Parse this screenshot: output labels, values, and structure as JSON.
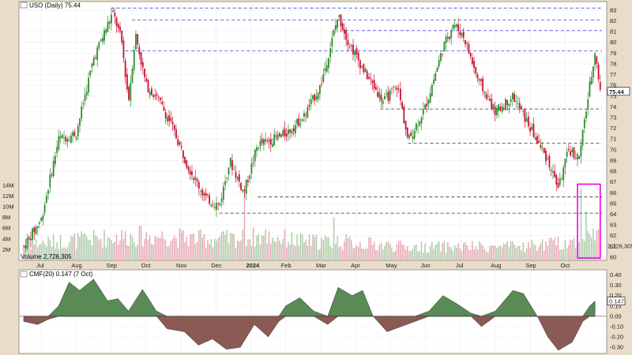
{
  "chart_data": [
    {
      "type": "candlestick",
      "symbol": "USO",
      "title": "USO (Daily) 75.44",
      "last_close": 75.44,
      "volume_label": "Volume 2,726,305",
      "volume_marker": "2,726,305",
      "price_ticks": [
        60,
        61,
        62,
        63,
        64,
        65,
        66,
        67,
        68,
        69,
        70,
        71,
        72,
        73,
        74,
        75,
        76,
        77,
        78,
        79,
        80,
        81,
        82,
        83
      ],
      "ylim": [
        59.7,
        83.8
      ],
      "volume_ticks": [
        "2M",
        "4M",
        "6M",
        "8M",
        "10M",
        "12M",
        "14M"
      ],
      "volume_tick_values": [
        2,
        4,
        6,
        8,
        10,
        12,
        14
      ],
      "volume_ylim": [
        0,
        15
      ],
      "x_labels": [
        "Jul",
        "Aug",
        "Sep",
        "Oct",
        "Nov",
        "Dec",
        "2024",
        "Feb",
        "Mar",
        "Apr",
        "May",
        "Jun",
        "Jul",
        "Aug",
        "Sep",
        "Oct"
      ],
      "x_label_month_index": [
        1,
        2,
        3,
        4,
        5,
        6,
        7,
        8,
        9,
        10,
        11,
        12,
        13,
        14,
        15,
        16
      ],
      "resistance_levels_blue": [
        83.2,
        82.1,
        81.1,
        79.2
      ],
      "support_levels_black": [
        73.8,
        70.6,
        65.6,
        64.1
      ],
      "price_path": [
        {
          "t": 0,
          "p": 61.0
        },
        {
          "t": 0.5,
          "p": 63.5
        },
        {
          "t": 1.0,
          "p": 71.0
        },
        {
          "t": 1.5,
          "p": 71.5
        },
        {
          "t": 2.0,
          "p": 78.5
        },
        {
          "t": 2.55,
          "p": 82.8
        },
        {
          "t": 2.8,
          "p": 80.2
        },
        {
          "t": 3.0,
          "p": 74.5
        },
        {
          "t": 3.2,
          "p": 80.8
        },
        {
          "t": 3.5,
          "p": 76.0
        },
        {
          "t": 3.8,
          "p": 75.0
        },
        {
          "t": 4.2,
          "p": 72.5
        },
        {
          "t": 4.7,
          "p": 68.5
        },
        {
          "t": 5.2,
          "p": 65.5
        },
        {
          "t": 5.6,
          "p": 64.8
        },
        {
          "t": 5.9,
          "p": 69.0
        },
        {
          "t": 6.3,
          "p": 66.0
        },
        {
          "t": 6.7,
          "p": 70.5
        },
        {
          "t": 7.0,
          "p": 70.8
        },
        {
          "t": 7.5,
          "p": 71.5
        },
        {
          "t": 8.0,
          "p": 73.0
        },
        {
          "t": 8.5,
          "p": 76.0
        },
        {
          "t": 9.0,
          "p": 82.5
        },
        {
          "t": 9.3,
          "p": 80.0
        },
        {
          "t": 9.8,
          "p": 77.0
        },
        {
          "t": 10.3,
          "p": 74.5
        },
        {
          "t": 10.7,
          "p": 76.0
        },
        {
          "t": 11.0,
          "p": 70.8
        },
        {
          "t": 11.5,
          "p": 74.0
        },
        {
          "t": 12.0,
          "p": 79.5
        },
        {
          "t": 12.3,
          "p": 81.8
        },
        {
          "t": 12.6,
          "p": 80.5
        },
        {
          "t": 13.0,
          "p": 76.5
        },
        {
          "t": 13.5,
          "p": 73.5
        },
        {
          "t": 14.0,
          "p": 75.0
        },
        {
          "t": 14.5,
          "p": 72.0
        },
        {
          "t": 15.0,
          "p": 69.0
        },
        {
          "t": 15.3,
          "p": 66.5
        },
        {
          "t": 15.6,
          "p": 70.0
        },
        {
          "t": 15.9,
          "p": 69.2
        },
        {
          "t": 16.1,
          "p": 73.8
        },
        {
          "t": 16.35,
          "p": 79.2
        },
        {
          "t": 16.5,
          "p": 75.44
        }
      ],
      "volume_path": [
        {
          "t": 0,
          "v": 3.0
        },
        {
          "t": 1,
          "v": 3.5
        },
        {
          "t": 2,
          "v": 4.0
        },
        {
          "t": 3,
          "v": 4.5
        },
        {
          "t": 4,
          "v": 4.5
        },
        {
          "t": 5,
          "v": 4.0
        },
        {
          "t": 6,
          "v": 4.0
        },
        {
          "t": 7,
          "v": 4.5
        },
        {
          "t": 8,
          "v": 3.5
        },
        {
          "t": 9,
          "v": 3.5
        },
        {
          "t": 10,
          "v": 3.0
        },
        {
          "t": 11,
          "v": 2.5
        },
        {
          "t": 12,
          "v": 2.5
        },
        {
          "t": 13,
          "v": 2.5
        },
        {
          "t": 14,
          "v": 2.5
        },
        {
          "t": 15,
          "v": 3.0
        },
        {
          "t": 15.8,
          "v": 3.5
        },
        {
          "t": 16,
          "v": 5.0
        }
      ],
      "volume_spikes": [
        {
          "t": 6.3,
          "v": 13.5
        },
        {
          "t": 8.9,
          "v": 8.0
        },
        {
          "t": 15.95,
          "v": 13.5
        },
        {
          "t": 16.1,
          "v": 9.0
        }
      ],
      "highlight_box": {
        "t_start": 15.85,
        "t_end": 16.5,
        "color": "#ee00ee"
      }
    },
    {
      "type": "area",
      "title": "CMF(20) 0.147 (7 Oct)",
      "last_value": "0.147",
      "y_ticks": [
        "0.40",
        "0.30",
        "0.20",
        "0.10",
        "0.00",
        "-0.10",
        "-0.20",
        "-0.30"
      ],
      "y_tick_values": [
        0.4,
        0.3,
        0.2,
        0.1,
        0.0,
        -0.1,
        -0.2,
        -0.3
      ],
      "ylim": [
        -0.36,
        0.45
      ],
      "positive_color": "#5a8a55",
      "negative_color": "#8b5a55",
      "points": [
        {
          "t": 0,
          "v": -0.05
        },
        {
          "t": 0.4,
          "v": -0.08
        },
        {
          "t": 0.7,
          "v": -0.03
        },
        {
          "t": 1.0,
          "v": 0.1
        },
        {
          "t": 1.3,
          "v": 0.33
        },
        {
          "t": 1.6,
          "v": 0.25
        },
        {
          "t": 2.0,
          "v": 0.36
        },
        {
          "t": 2.4,
          "v": 0.15
        },
        {
          "t": 2.7,
          "v": 0.17
        },
        {
          "t": 3.0,
          "v": 0.05
        },
        {
          "t": 3.4,
          "v": 0.26
        },
        {
          "t": 3.8,
          "v": 0.05
        },
        {
          "t": 4.1,
          "v": -0.12
        },
        {
          "t": 4.6,
          "v": -0.15
        },
        {
          "t": 5.0,
          "v": -0.28
        },
        {
          "t": 5.4,
          "v": -0.22
        },
        {
          "t": 5.8,
          "v": -0.32
        },
        {
          "t": 6.2,
          "v": -0.3
        },
        {
          "t": 6.6,
          "v": -0.08
        },
        {
          "t": 7.0,
          "v": -0.2
        },
        {
          "t": 7.3,
          "v": -0.05
        },
        {
          "t": 7.5,
          "v": 0.1
        },
        {
          "t": 7.9,
          "v": 0.18
        },
        {
          "t": 8.3,
          "v": 0.05
        },
        {
          "t": 8.7,
          "v": -0.08
        },
        {
          "t": 9.0,
          "v": 0.28
        },
        {
          "t": 9.4,
          "v": 0.2
        },
        {
          "t": 9.7,
          "v": 0.25
        },
        {
          "t": 10.0,
          "v": 0.0
        },
        {
          "t": 10.4,
          "v": -0.15
        },
        {
          "t": 10.8,
          "v": -0.1
        },
        {
          "t": 11.2,
          "v": -0.05
        },
        {
          "t": 11.6,
          "v": 0.05
        },
        {
          "t": 12.0,
          "v": 0.2
        },
        {
          "t": 12.4,
          "v": 0.12
        },
        {
          "t": 12.8,
          "v": 0.03
        },
        {
          "t": 13.1,
          "v": -0.1
        },
        {
          "t": 13.5,
          "v": 0.05
        },
        {
          "t": 14.0,
          "v": 0.25
        },
        {
          "t": 14.3,
          "v": 0.22
        },
        {
          "t": 14.7,
          "v": 0.0
        },
        {
          "t": 15.0,
          "v": -0.2
        },
        {
          "t": 15.3,
          "v": -0.33
        },
        {
          "t": 15.7,
          "v": -0.25
        },
        {
          "t": 16.0,
          "v": -0.05
        },
        {
          "t": 16.2,
          "v": 0.1
        },
        {
          "t": 16.35,
          "v": 0.147
        }
      ]
    }
  ]
}
